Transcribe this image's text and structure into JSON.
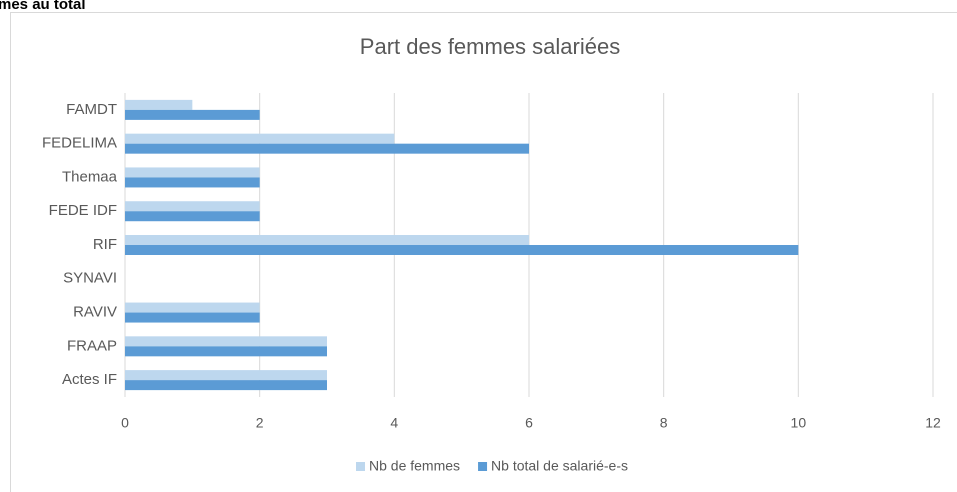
{
  "heading": "mes au total",
  "chart_data": {
    "type": "bar",
    "orientation": "horizontal",
    "title": "Part des femmes salariées",
    "categories": [
      "FAMDT",
      "FEDELIMA",
      "Themaa",
      "FEDE IDF",
      "RIF",
      "SYNAVI",
      "RAVIV",
      "FRAAP",
      "Actes IF"
    ],
    "series": [
      {
        "name": "Nb de femmes",
        "color": "#bdd7ee",
        "values": [
          1,
          4,
          2,
          2,
          6,
          0,
          2,
          3,
          3
        ]
      },
      {
        "name": "Nb total de salarié-e-s",
        "color": "#5b9bd5",
        "values": [
          2,
          6,
          2,
          2,
          10,
          0,
          2,
          3,
          3
        ]
      }
    ],
    "xlim": [
      0,
      12
    ],
    "xticks": [
      0,
      2,
      4,
      6,
      8,
      10,
      12
    ],
    "grid": true,
    "legend": "bottom"
  }
}
